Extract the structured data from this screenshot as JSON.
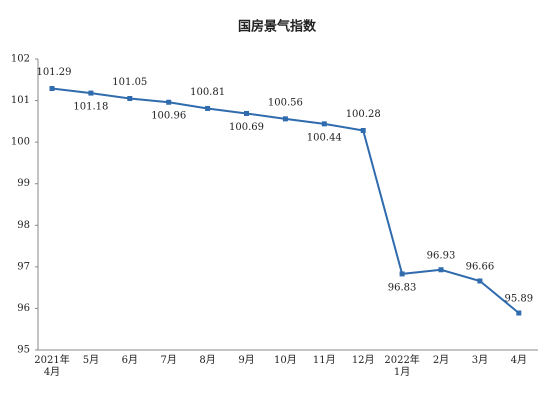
{
  "chart_data": {
    "type": "line",
    "title": "国房景气指数",
    "categories": [
      "2021年\n4月",
      "5月",
      "6月",
      "7月",
      "8月",
      "9月",
      "10月",
      "11月",
      "12月",
      "2022年\n1月",
      "2月",
      "3月",
      "4月"
    ],
    "series": [
      {
        "name": "国房景气指数",
        "color": "#2f6bad",
        "values": [
          101.29,
          101.18,
          101.05,
          100.96,
          100.81,
          100.69,
          100.56,
          100.44,
          100.28,
          96.83,
          96.93,
          96.66,
          95.89
        ]
      }
    ],
    "ylim": [
      95,
      102
    ],
    "yticks": [
      95,
      96,
      97,
      98,
      99,
      100,
      101,
      102
    ],
    "grid": false
  }
}
